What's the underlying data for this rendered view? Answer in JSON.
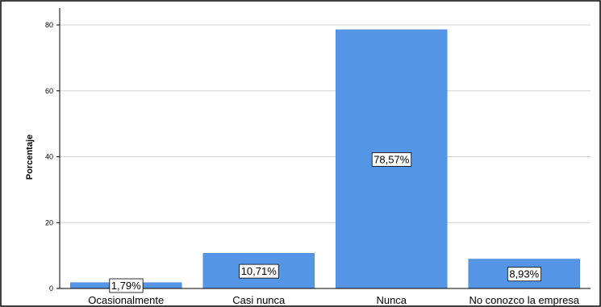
{
  "chart_data": {
    "type": "bar",
    "categories": [
      "Ocasionalmente",
      "Casi nunca",
      "Nunca",
      "No conozco la empresa"
    ],
    "values": [
      1.79,
      10.71,
      78.57,
      8.93
    ],
    "data_labels": [
      "1,79%",
      "10,71%",
      "78,57%",
      "8,93%"
    ],
    "title": "",
    "xlabel": "",
    "ylabel": "Porcentaje",
    "ylim": [
      0,
      82
    ],
    "yticks": [
      0,
      20,
      40,
      60,
      80
    ],
    "grid": "horizontal",
    "colors": {
      "bar": "#5595e5",
      "bar_edge": "#4a86d4",
      "grid": "#cfcfcf",
      "frame": "#000000"
    }
  }
}
